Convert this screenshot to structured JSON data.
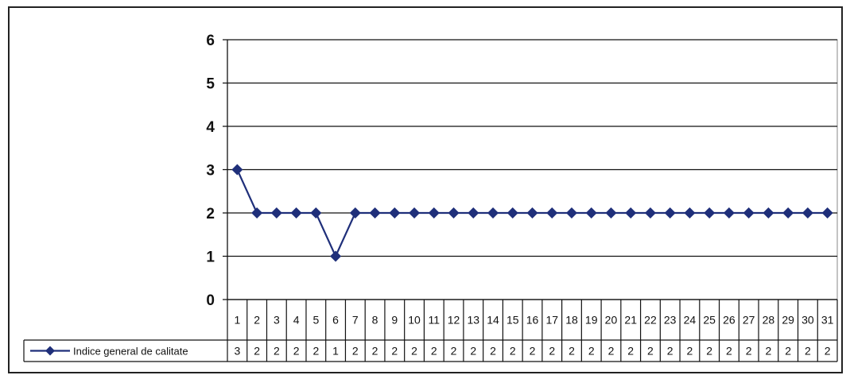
{
  "chart_data": {
    "type": "line",
    "categories": [
      "1",
      "2",
      "3",
      "4",
      "5",
      "6",
      "7",
      "8",
      "9",
      "10",
      "11",
      "12",
      "13",
      "14",
      "15",
      "16",
      "17",
      "18",
      "19",
      "20",
      "21",
      "22",
      "23",
      "24",
      "25",
      "26",
      "27",
      "28",
      "29",
      "30",
      "31"
    ],
    "series": [
      {
        "name": "Indice general de calitate",
        "values": [
          3,
          2,
          2,
          2,
          2,
          1,
          2,
          2,
          2,
          2,
          2,
          2,
          2,
          2,
          2,
          2,
          2,
          2,
          2,
          2,
          2,
          2,
          2,
          2,
          2,
          2,
          2,
          2,
          2,
          2,
          2
        ],
        "color": "#1f2f7a",
        "marker": "diamond"
      }
    ],
    "y_ticks": [
      "0",
      "1",
      "2",
      "3",
      "4",
      "5",
      "6"
    ],
    "ylim": [
      0,
      6
    ],
    "grid": "horizontal",
    "legend": "data-table",
    "title": "",
    "xlabel": "",
    "ylabel": ""
  }
}
